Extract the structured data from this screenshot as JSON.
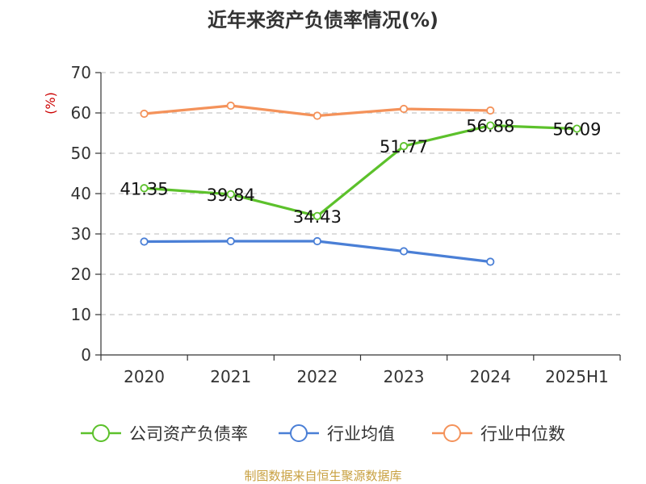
{
  "chart_data": {
    "type": "line",
    "title": "近年来资产负债率情况(%)",
    "ylabel": "(%)",
    "xlabel": "",
    "categories": [
      "2020",
      "2021",
      "2022",
      "2023",
      "2024",
      "2025H1"
    ],
    "ylim": [
      0,
      70
    ],
    "yticks": [
      0,
      10,
      20,
      30,
      40,
      50,
      60,
      70
    ],
    "grid": true,
    "legend_position": "bottom",
    "series": [
      {
        "name": "公司资产负债率",
        "color": "#5cc12b",
        "values": [
          41.35,
          39.84,
          34.43,
          51.77,
          56.88,
          56.09
        ],
        "labels": [
          "41.35",
          "39.84",
          "34.43",
          "51.77",
          "56.88",
          "56.09"
        ]
      },
      {
        "name": "行业均值",
        "color": "#4a7fd6",
        "values": [
          28.1,
          28.2,
          28.2,
          25.7,
          23.1,
          null
        ]
      },
      {
        "name": "行业中位数",
        "color": "#f4925a",
        "values": [
          59.8,
          61.8,
          59.3,
          61.0,
          60.6,
          null
        ]
      }
    ]
  },
  "source": "制图数据来自恒生聚源数据库"
}
